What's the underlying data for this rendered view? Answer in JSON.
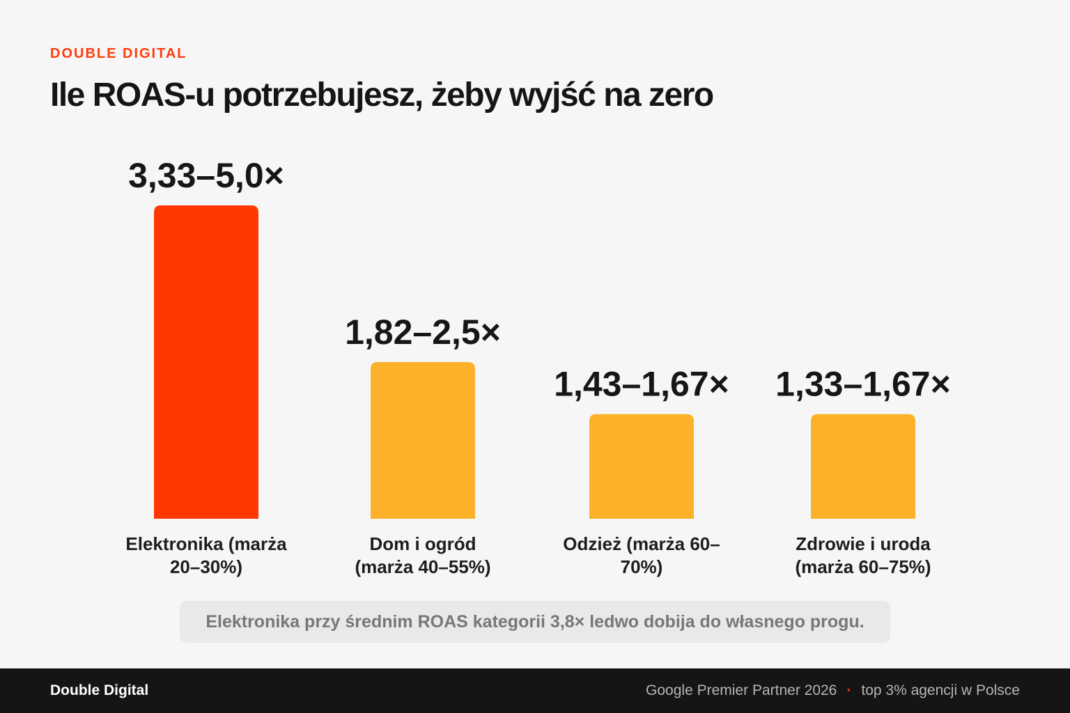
{
  "header": {
    "kicker": "DOUBLE DIGITAL",
    "title": "Ile ROAS-u potrzebujesz, żeby wyjść na zero"
  },
  "colors": {
    "accent": "#ff3d0d",
    "bar_primary": "#ff3700",
    "bar_secondary": "#fdb12a"
  },
  "chart_data": {
    "type": "bar",
    "categories": [
      [
        "Elektronika (marża",
        "20–30%)"
      ],
      [
        "Dom i ogród",
        "(marża 40–55%)"
      ],
      [
        "Odzież (marża 60–",
        "70%)"
      ],
      [
        "Zdrowie i uroda",
        "(marża 60–75%)"
      ]
    ],
    "values": [
      5.0,
      2.5,
      1.67,
      1.67
    ],
    "ranges": [
      [
        3.33,
        5.0
      ],
      [
        1.82,
        2.5
      ],
      [
        1.43,
        1.67
      ],
      [
        1.33,
        1.67
      ]
    ],
    "data_labels": [
      "3,33–5,0×",
      "1,82–2,5×",
      "1,43–1,67×",
      "1,33–1,67×"
    ],
    "highlight_index": 0,
    "ylim": [
      0,
      5
    ],
    "title": "Ile ROAS-u potrzebujesz, żeby wyjść na zero",
    "xlabel": "",
    "ylabel": "",
    "grid": false
  },
  "note": {
    "text": "Elektronika przy średnim ROAS kategorii 3,8× ledwo dobija do własnego progu."
  },
  "footer": {
    "brand": "Double Digital",
    "partner": "Google Premier Partner 2026",
    "separator": "·",
    "rank": "top 3% agencji w Polsce"
  }
}
